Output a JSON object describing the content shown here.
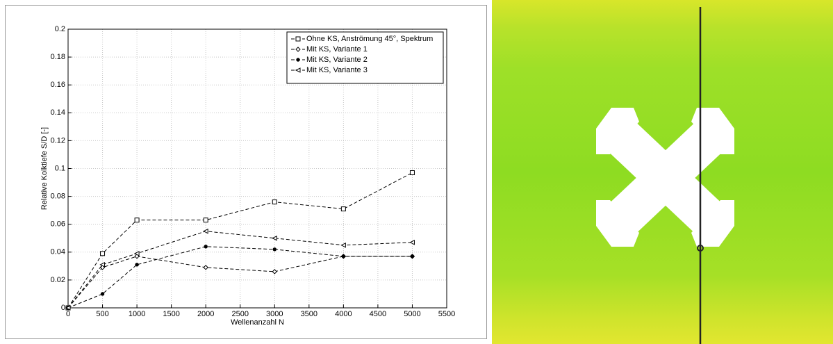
{
  "chart_data": {
    "type": "line",
    "xlabel": "Wellenanzahl N",
    "ylabel": "Relative Kolktiefe S/D [-]",
    "x": [
      0,
      500,
      1000,
      2000,
      3000,
      4000,
      5000
    ],
    "series": [
      {
        "name": "Ohne KS, Anströmung 45°, Spektrum",
        "color": "#000000",
        "marker": "square",
        "values": [
          0,
          0.039,
          0.063,
          0.063,
          0.076,
          0.071,
          0.097
        ]
      },
      {
        "name": "Mit KS, Variante 1",
        "color": "#000000",
        "marker": "diamond",
        "values": [
          0,
          0.029,
          0.037,
          0.029,
          0.026,
          0.037,
          0.037
        ]
      },
      {
        "name": "Mit KS, Variante 2",
        "color": "#000000",
        "marker": "dot",
        "values": [
          0,
          0.01,
          0.031,
          0.044,
          0.042,
          0.037,
          0.037
        ]
      },
      {
        "name": "Mit KS, Variante 3",
        "color": "#000000",
        "marker": "triangle-left",
        "values": [
          0,
          0.031,
          0.039,
          0.055,
          0.05,
          0.045,
          0.047
        ]
      }
    ],
    "xlim": [
      0,
      5500
    ],
    "ylim": [
      0,
      0.2
    ],
    "xticks": [
      0,
      500,
      1000,
      1500,
      2000,
      2500,
      3000,
      3500,
      4000,
      4500,
      5000,
      5500
    ],
    "yticks": [
      0,
      0.02,
      0.04,
      0.06,
      0.08,
      0.1,
      0.12,
      0.14,
      0.16,
      0.18,
      0.2
    ],
    "grid": true,
    "legend": "upper right"
  }
}
